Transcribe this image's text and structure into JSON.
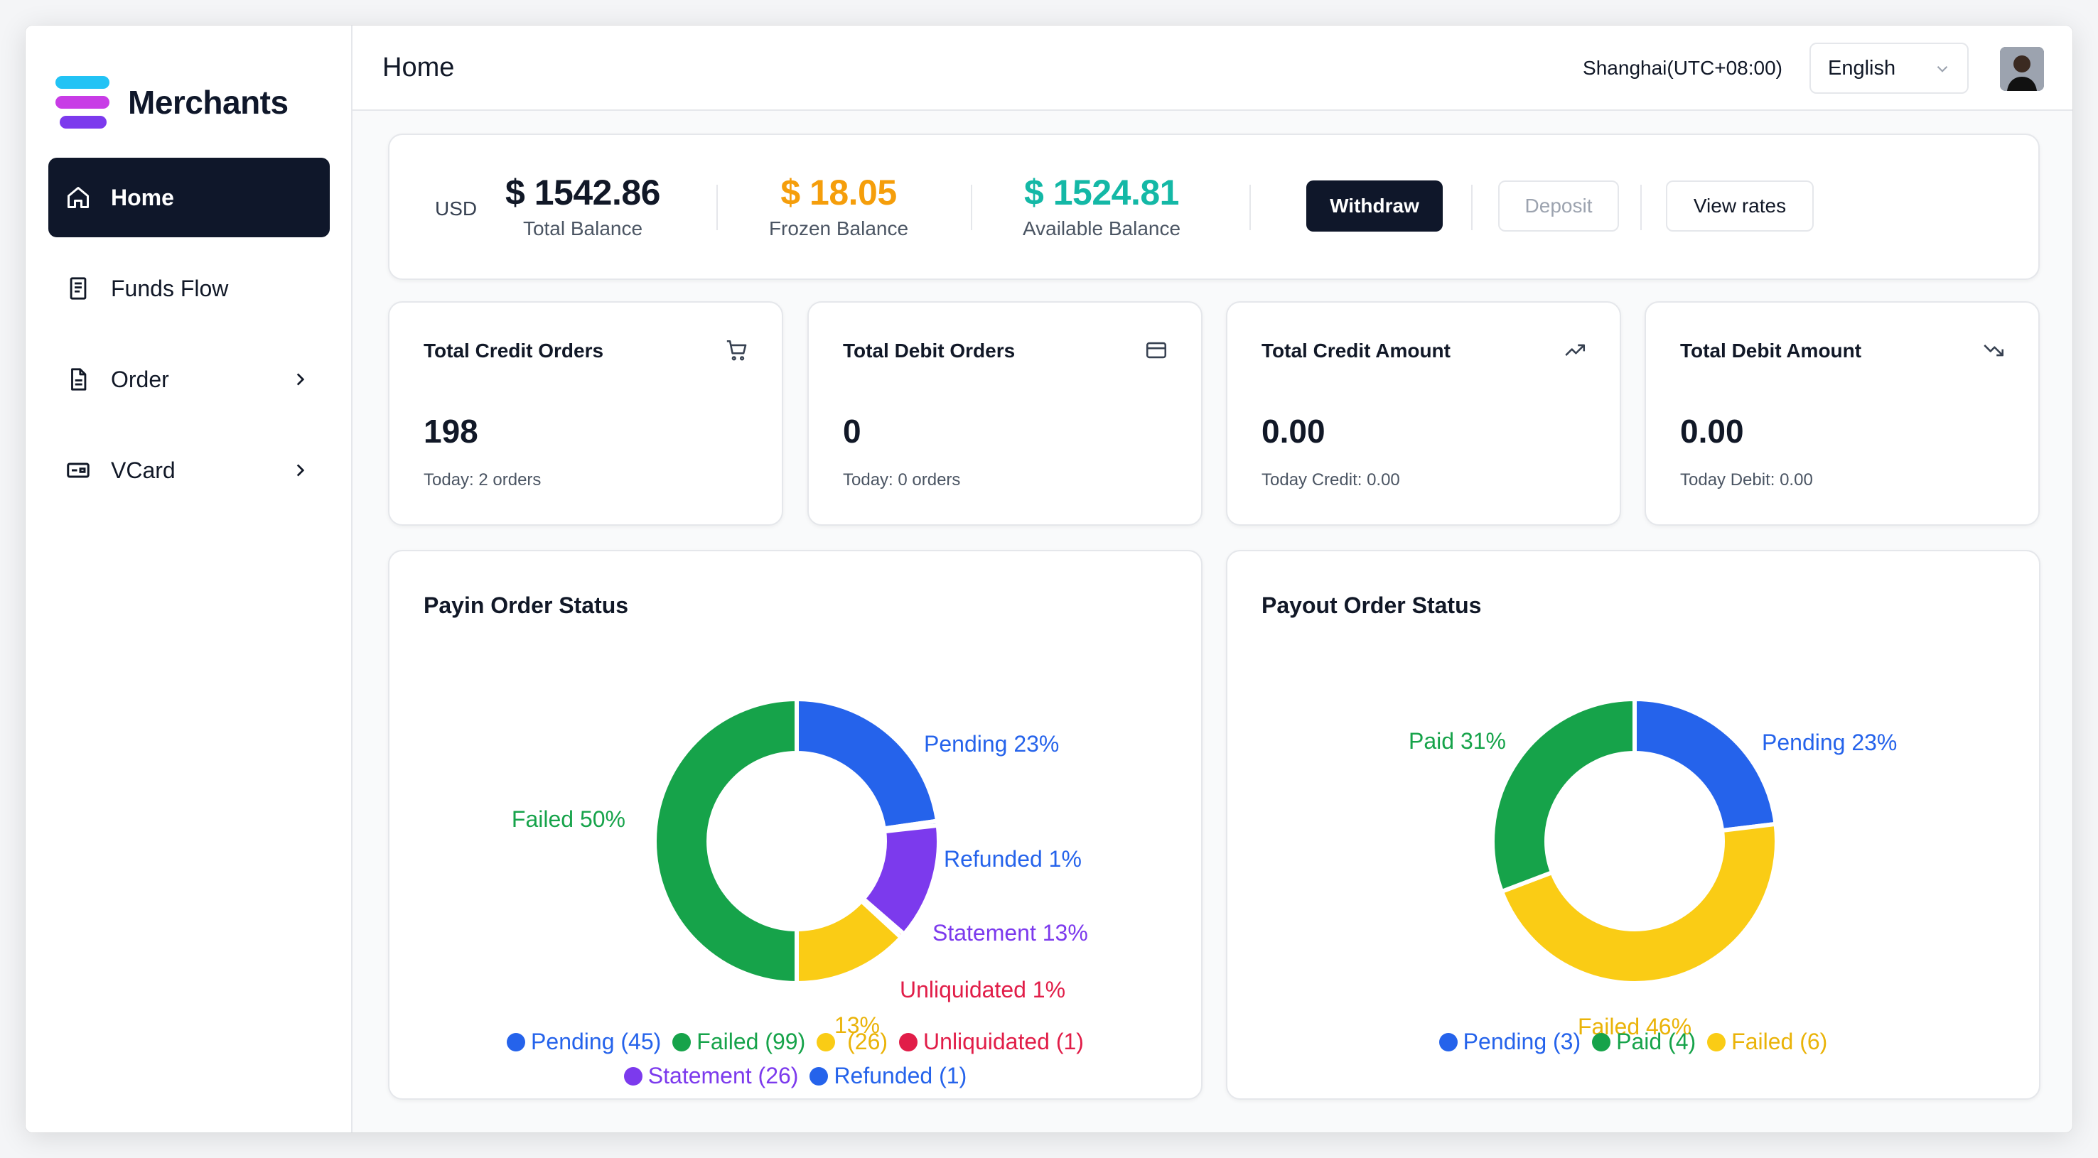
{
  "brand": {
    "name": "Merchants"
  },
  "sidebar": {
    "items": [
      {
        "label": "Home",
        "icon": "home-icon",
        "active": true
      },
      {
        "label": "Funds Flow",
        "icon": "receipt-icon"
      },
      {
        "label": "Order",
        "icon": "document-icon",
        "expandable": true
      },
      {
        "label": "VCard",
        "icon": "card-icon",
        "expandable": true
      }
    ]
  },
  "header": {
    "title": "Home",
    "timezone": "Shanghai(UTC+08:00)",
    "language": "English"
  },
  "balance": {
    "currency": "USD",
    "total": {
      "value": "$ 1542.86",
      "label": "Total Balance",
      "color": "#111827"
    },
    "frozen": {
      "value": "$ 18.05",
      "label": "Frozen Balance",
      "color": "#f59e0b"
    },
    "available": {
      "value": "$ 1524.81",
      "label": "Available Balance",
      "color": "#14b8a6"
    },
    "buttons": {
      "withdraw": "Withdraw",
      "deposit": "Deposit",
      "view_rates": "View rates"
    }
  },
  "stats": [
    {
      "title": "Total Credit Orders",
      "value": "198",
      "sub": "Today: 2 orders",
      "icon": "cart-icon"
    },
    {
      "title": "Total Debit Orders",
      "value": "0",
      "sub": "Today: 0 orders",
      "icon": "credit-card-icon"
    },
    {
      "title": "Total Credit Amount",
      "value": "0.00",
      "sub": "Today Credit: 0.00",
      "icon": "trending-up-icon"
    },
    {
      "title": "Total Debit Amount",
      "value": "0.00",
      "sub": "Today Debit: 0.00",
      "icon": "trending-down-icon"
    }
  ],
  "chart_data": [
    {
      "type": "pie",
      "title": "Payin Order Status",
      "slices": [
        {
          "name": "Pending",
          "count": 45,
          "percent_label": "Pending 23%",
          "legend": "Pending (45)",
          "color": "#2563eb"
        },
        {
          "name": "Refunded",
          "count": 1,
          "percent_label": "Refunded 1%",
          "legend": "Refunded (1)",
          "color": "#2563eb"
        },
        {
          "name": "Statement",
          "count": 26,
          "percent_label": "Statement 13%",
          "legend": "Statement (26)",
          "color": "#7c3aed"
        },
        {
          "name": "Unliquidated",
          "count": 1,
          "percent_label": "Unliquidated 1%",
          "legend": "Unliquidated (1)",
          "color": "#e11d48"
        },
        {
          "name": "",
          "count": 26,
          "percent_label": "13%",
          "legend": " (26)",
          "color": "#facc15"
        },
        {
          "name": "Failed",
          "count": 99,
          "percent_label": "Failed 50%",
          "legend": "Failed (99)",
          "color": "#16a34a"
        }
      ],
      "legend_order": [
        "Pending",
        "Failed",
        "",
        "Unliquidated",
        "Statement",
        "Refunded"
      ]
    },
    {
      "type": "pie",
      "title": "Payout Order Status",
      "slices": [
        {
          "name": "Pending",
          "count": 3,
          "percent_label": "Pending 23%",
          "legend": "Pending (3)",
          "color": "#2563eb"
        },
        {
          "name": "Failed",
          "count": 6,
          "percent_label": "Failed 46%",
          "legend": "Failed (6)",
          "color": "#facc15"
        },
        {
          "name": "Paid",
          "count": 4,
          "percent_label": "Paid 31%",
          "legend": "Paid (4)",
          "color": "#16a34a"
        }
      ],
      "legend_order": [
        "Pending",
        "Paid",
        "Failed"
      ]
    }
  ]
}
